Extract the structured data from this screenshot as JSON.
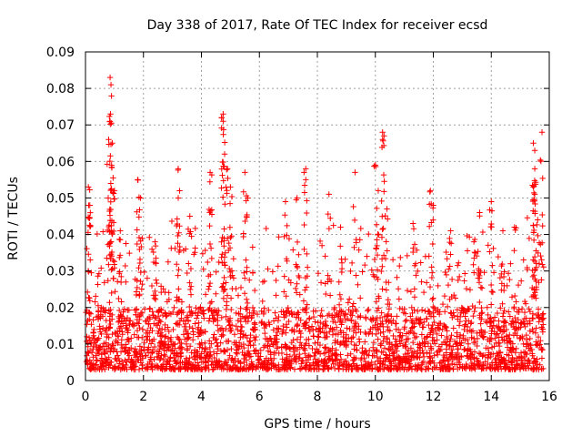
{
  "chart_data": {
    "type": "scatter",
    "title": "Day 338 of 2017, Rate Of TEC Index for receiver ecsd",
    "xlabel": "GPS time / hours",
    "ylabel": "ROTI / TECUs",
    "xlim": [
      0,
      16
    ],
    "ylim": [
      0,
      0.09
    ],
    "x_ticks": [
      0,
      2,
      4,
      6,
      8,
      10,
      12,
      14,
      16
    ],
    "y_ticks": [
      0,
      0.01,
      0.02,
      0.03,
      0.04,
      0.05,
      0.06,
      0.07,
      0.08,
      0.09
    ],
    "x_tick_labels": [
      "0",
      "2",
      "4",
      "6",
      "8",
      "10",
      "12",
      "14",
      "16"
    ],
    "y_tick_labels": [
      "0",
      "0.01",
      "0.02",
      "0.03",
      "0.04",
      "0.05",
      "0.06",
      "0.07",
      "0.08",
      "0.09"
    ],
    "grid": true,
    "marker": "+",
    "marker_color": "#ff0000",
    "x_range_of_data": [
      0.0,
      15.8
    ],
    "baseline_band": [
      0.003,
      0.02
    ],
    "peaks": [
      {
        "x": 0.1,
        "y": 0.053
      },
      {
        "x": 0.15,
        "y": 0.048
      },
      {
        "x": 0.85,
        "y": 0.083
      },
      {
        "x": 0.88,
        "y": 0.081
      },
      {
        "x": 0.85,
        "y": 0.071
      },
      {
        "x": 0.8,
        "y": 0.066
      },
      {
        "x": 0.9,
        "y": 0.059
      },
      {
        "x": 1.0,
        "y": 0.052
      },
      {
        "x": 1.2,
        "y": 0.041
      },
      {
        "x": 1.8,
        "y": 0.055
      },
      {
        "x": 1.9,
        "y": 0.05
      },
      {
        "x": 2.4,
        "y": 0.038
      },
      {
        "x": 3.2,
        "y": 0.058
      },
      {
        "x": 3.2,
        "y": 0.05
      },
      {
        "x": 3.6,
        "y": 0.045
      },
      {
        "x": 4.3,
        "y": 0.057
      },
      {
        "x": 4.75,
        "y": 0.073
      },
      {
        "x": 4.75,
        "y": 0.071
      },
      {
        "x": 4.8,
        "y": 0.062
      },
      {
        "x": 4.9,
        "y": 0.058
      },
      {
        "x": 5.0,
        "y": 0.053
      },
      {
        "x": 5.5,
        "y": 0.057
      },
      {
        "x": 5.6,
        "y": 0.05
      },
      {
        "x": 6.9,
        "y": 0.049
      },
      {
        "x": 7.3,
        "y": 0.05
      },
      {
        "x": 7.6,
        "y": 0.058
      },
      {
        "x": 7.6,
        "y": 0.055
      },
      {
        "x": 8.4,
        "y": 0.051
      },
      {
        "x": 8.8,
        "y": 0.042
      },
      {
        "x": 9.3,
        "y": 0.057
      },
      {
        "x": 10.0,
        "y": 0.059
      },
      {
        "x": 10.1,
        "y": 0.052
      },
      {
        "x": 10.25,
        "y": 0.068
      },
      {
        "x": 10.25,
        "y": 0.066
      },
      {
        "x": 10.4,
        "y": 0.047
      },
      {
        "x": 11.3,
        "y": 0.043
      },
      {
        "x": 11.9,
        "y": 0.052
      },
      {
        "x": 12.0,
        "y": 0.048
      },
      {
        "x": 12.6,
        "y": 0.041
      },
      {
        "x": 13.4,
        "y": 0.038
      },
      {
        "x": 13.6,
        "y": 0.046
      },
      {
        "x": 14.0,
        "y": 0.049
      },
      {
        "x": 14.4,
        "y": 0.041
      },
      {
        "x": 14.8,
        "y": 0.042
      },
      {
        "x": 15.45,
        "y": 0.065
      },
      {
        "x": 15.5,
        "y": 0.063
      },
      {
        "x": 15.5,
        "y": 0.058
      },
      {
        "x": 15.45,
        "y": 0.053
      },
      {
        "x": 15.75,
        "y": 0.068
      },
      {
        "x": 15.6,
        "y": 0.044
      }
    ]
  }
}
